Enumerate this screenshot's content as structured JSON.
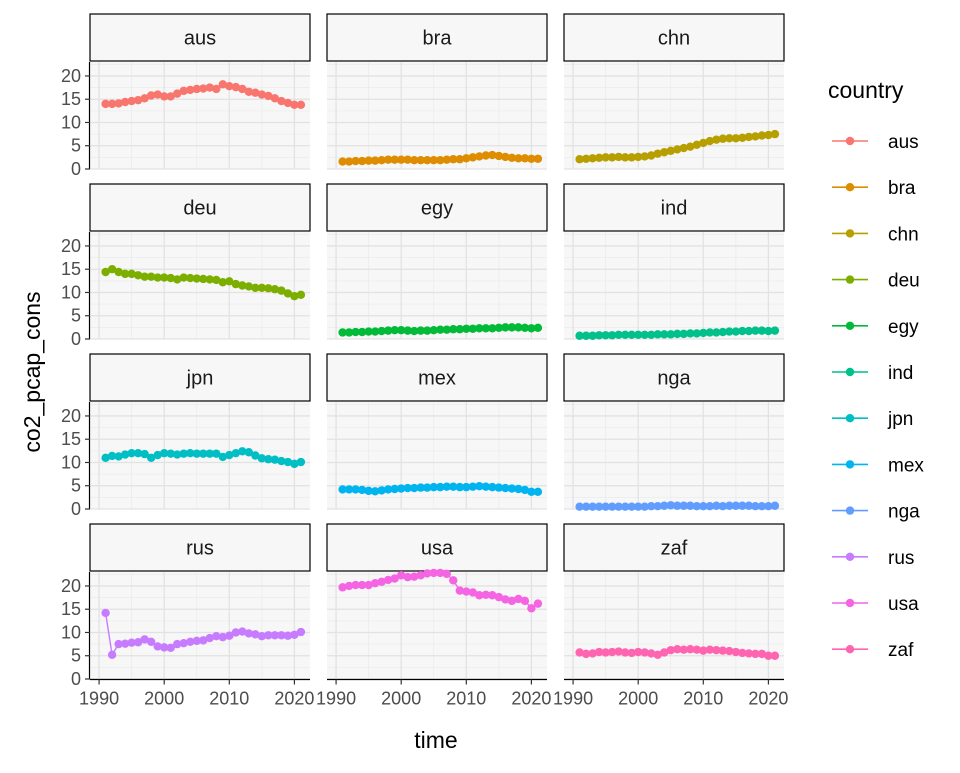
{
  "chart_data": {
    "type": "line",
    "facet_by": "country",
    "xlabel": "time",
    "ylabel": "co2_pcap_cons",
    "xlim": [
      1990,
      2021
    ],
    "ylim": [
      0,
      23
    ],
    "x_ticks": [
      1990,
      2000,
      2010,
      2020
    ],
    "y_ticks": [
      0,
      5,
      10,
      15,
      20
    ],
    "grid": true,
    "markers": true,
    "legend_title": "country",
    "legend_position": "right",
    "x": [
      1991,
      1992,
      1993,
      1994,
      1995,
      1996,
      1997,
      1998,
      1999,
      2000,
      2001,
      2002,
      2003,
      2004,
      2005,
      2006,
      2007,
      2008,
      2009,
      2010,
      2011,
      2012,
      2013,
      2014,
      2015,
      2016,
      2017,
      2018,
      2019,
      2020,
      2021
    ],
    "series": [
      {
        "name": "aus",
        "color": "#F8766D",
        "values": [
          14.0,
          14.0,
          14.1,
          14.4,
          14.6,
          14.8,
          15.2,
          15.8,
          16.0,
          15.6,
          15.6,
          16.2,
          16.8,
          17.0,
          17.2,
          17.3,
          17.5,
          17.2,
          18.2,
          17.8,
          17.6,
          17.2,
          16.6,
          16.4,
          16.0,
          15.7,
          15.2,
          14.6,
          14.2,
          13.8,
          13.8
        ]
      },
      {
        "name": "bra",
        "color": "#DE8C00",
        "values": [
          1.6,
          1.6,
          1.7,
          1.7,
          1.8,
          1.8,
          1.9,
          2.0,
          2.0,
          2.0,
          2.0,
          1.9,
          1.9,
          1.9,
          1.9,
          1.9,
          2.0,
          2.1,
          2.1,
          2.3,
          2.5,
          2.7,
          2.9,
          3.0,
          2.8,
          2.6,
          2.4,
          2.3,
          2.3,
          2.2,
          2.2
        ]
      },
      {
        "name": "chn",
        "color": "#B79F00",
        "values": [
          2.1,
          2.2,
          2.3,
          2.4,
          2.5,
          2.5,
          2.6,
          2.5,
          2.5,
          2.6,
          2.7,
          2.9,
          3.3,
          3.6,
          3.9,
          4.2,
          4.5,
          4.8,
          5.2,
          5.6,
          6.0,
          6.3,
          6.5,
          6.6,
          6.6,
          6.7,
          6.9,
          7.0,
          7.2,
          7.3,
          7.5
        ]
      },
      {
        "name": "deu",
        "color": "#7CAE00",
        "values": [
          14.4,
          15.0,
          14.4,
          14.0,
          14.0,
          13.7,
          13.4,
          13.4,
          13.2,
          13.2,
          13.1,
          12.8,
          13.2,
          13.1,
          13.0,
          12.9,
          12.8,
          12.7,
          12.2,
          12.4,
          11.8,
          11.5,
          11.3,
          11.0,
          11.0,
          10.9,
          10.7,
          10.4,
          9.8,
          9.2,
          9.5
        ]
      },
      {
        "name": "egy",
        "color": "#00BA38",
        "values": [
          1.4,
          1.4,
          1.5,
          1.5,
          1.6,
          1.6,
          1.7,
          1.8,
          1.9,
          1.9,
          1.8,
          1.7,
          1.8,
          1.8,
          1.9,
          2.0,
          2.0,
          2.1,
          2.1,
          2.2,
          2.2,
          2.3,
          2.3,
          2.3,
          2.4,
          2.5,
          2.5,
          2.5,
          2.4,
          2.3,
          2.4
        ]
      },
      {
        "name": "ind",
        "color": "#00C08B",
        "values": [
          0.7,
          0.7,
          0.7,
          0.8,
          0.8,
          0.8,
          0.9,
          0.9,
          0.9,
          0.9,
          0.9,
          0.9,
          1.0,
          1.0,
          1.0,
          1.1,
          1.1,
          1.2,
          1.2,
          1.3,
          1.4,
          1.4,
          1.5,
          1.6,
          1.6,
          1.7,
          1.7,
          1.8,
          1.8,
          1.7,
          1.8
        ]
      },
      {
        "name": "jpn",
        "color": "#00BFC4",
        "values": [
          11.0,
          11.4,
          11.3,
          11.7,
          12.0,
          12.0,
          11.8,
          11.0,
          11.6,
          12.0,
          11.9,
          11.7,
          11.9,
          12.0,
          11.9,
          11.9,
          11.9,
          11.9,
          11.2,
          11.6,
          12.0,
          12.4,
          12.2,
          11.5,
          10.9,
          10.7,
          10.6,
          10.3,
          10.1,
          9.7,
          10.1
        ]
      },
      {
        "name": "mex",
        "color": "#00B4F0",
        "values": [
          4.2,
          4.2,
          4.2,
          4.1,
          3.9,
          3.8,
          4.0,
          4.2,
          4.3,
          4.4,
          4.5,
          4.5,
          4.6,
          4.6,
          4.7,
          4.7,
          4.8,
          4.8,
          4.7,
          4.7,
          4.8,
          4.9,
          4.8,
          4.7,
          4.6,
          4.5,
          4.4,
          4.3,
          4.1,
          3.7,
          3.7
        ]
      },
      {
        "name": "nga",
        "color": "#619CFF",
        "values": [
          0.5,
          0.5,
          0.5,
          0.5,
          0.5,
          0.5,
          0.5,
          0.5,
          0.5,
          0.5,
          0.5,
          0.6,
          0.6,
          0.7,
          0.8,
          0.7,
          0.7,
          0.7,
          0.6,
          0.6,
          0.6,
          0.7,
          0.6,
          0.7,
          0.7,
          0.7,
          0.7,
          0.6,
          0.6,
          0.6,
          0.7
        ]
      },
      {
        "name": "rus",
        "color": "#C77CFF",
        "values": [
          14.2,
          5.2,
          7.5,
          7.6,
          7.8,
          7.9,
          8.5,
          8.0,
          7.0,
          6.8,
          6.7,
          7.5,
          7.7,
          8.0,
          8.2,
          8.3,
          8.8,
          9.2,
          9.0,
          9.3,
          10.0,
          10.2,
          9.8,
          9.6,
          9.2,
          9.4,
          9.4,
          9.4,
          9.3,
          9.5,
          10.1
        ]
      },
      {
        "name": "usa",
        "color": "#F564E3",
        "values": [
          19.7,
          20.0,
          20.2,
          20.2,
          20.2,
          20.6,
          20.9,
          21.3,
          21.6,
          22.3,
          21.9,
          22.0,
          22.3,
          22.7,
          22.8,
          22.8,
          22.6,
          21.2,
          19.0,
          18.8,
          18.6,
          18.0,
          18.1,
          18.0,
          17.6,
          17.1,
          16.8,
          17.2,
          16.8,
          15.2,
          16.2
        ]
      },
      {
        "name": "zaf",
        "color": "#FF64B0",
        "values": [
          5.7,
          5.4,
          5.5,
          5.8,
          5.7,
          5.8,
          5.9,
          5.7,
          5.6,
          5.8,
          5.7,
          5.5,
          5.2,
          5.7,
          6.2,
          6.4,
          6.3,
          6.4,
          6.3,
          6.1,
          6.3,
          6.2,
          6.1,
          6.0,
          5.8,
          5.6,
          5.5,
          5.4,
          5.4,
          5.0,
          5.0
        ]
      }
    ]
  }
}
